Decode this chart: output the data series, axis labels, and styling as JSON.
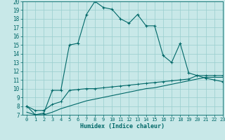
{
  "title": "",
  "xlabel": "Humidex (Indice chaleur)",
  "xlim": [
    -0.5,
    23
  ],
  "ylim": [
    7,
    20
  ],
  "xticks": [
    0,
    1,
    2,
    3,
    4,
    5,
    6,
    7,
    8,
    9,
    10,
    11,
    12,
    13,
    14,
    15,
    16,
    17,
    18,
    19,
    20,
    21,
    22,
    23
  ],
  "yticks": [
    7,
    8,
    9,
    10,
    11,
    12,
    13,
    14,
    15,
    16,
    17,
    18,
    19,
    20
  ],
  "line_color": "#006868",
  "bg_color": "#c8e8e8",
  "grid_color": "#98cece",
  "line1_x": [
    0,
    1,
    2,
    3,
    4,
    5,
    6,
    7,
    8,
    9,
    10,
    11,
    12,
    13,
    14,
    15,
    16,
    17,
    18,
    19,
    20,
    21,
    22,
    23
  ],
  "line1_y": [
    8.0,
    7.0,
    7.2,
    9.8,
    9.8,
    15.0,
    15.2,
    18.5,
    20.0,
    19.3,
    19.1,
    18.0,
    17.5,
    18.5,
    17.2,
    17.2,
    13.8,
    13.0,
    15.2,
    11.8,
    11.5,
    11.2,
    11.0,
    10.8
  ],
  "line2_x": [
    0,
    1,
    2,
    3,
    4,
    5,
    6,
    7,
    8,
    9,
    10,
    11,
    12,
    13,
    14,
    15,
    16,
    17,
    18,
    19,
    20,
    21,
    22,
    23
  ],
  "line2_y": [
    8.0,
    7.5,
    7.5,
    8.2,
    8.5,
    9.8,
    9.9,
    10.0,
    10.0,
    10.1,
    10.2,
    10.3,
    10.4,
    10.5,
    10.6,
    10.7,
    10.8,
    10.9,
    11.0,
    11.1,
    11.5,
    11.5,
    11.5,
    11.5
  ],
  "line3_x": [
    0,
    1,
    2,
    3,
    4,
    5,
    6,
    7,
    8,
    9,
    10,
    11,
    12,
    13,
    14,
    15,
    16,
    17,
    18,
    19,
    20,
    21,
    22,
    23
  ],
  "line3_y": [
    7.3,
    7.0,
    7.0,
    7.3,
    7.7,
    8.0,
    8.3,
    8.6,
    8.8,
    9.0,
    9.2,
    9.4,
    9.6,
    9.8,
    10.0,
    10.1,
    10.3,
    10.5,
    10.7,
    10.9,
    11.1,
    11.3,
    11.3,
    11.3
  ]
}
